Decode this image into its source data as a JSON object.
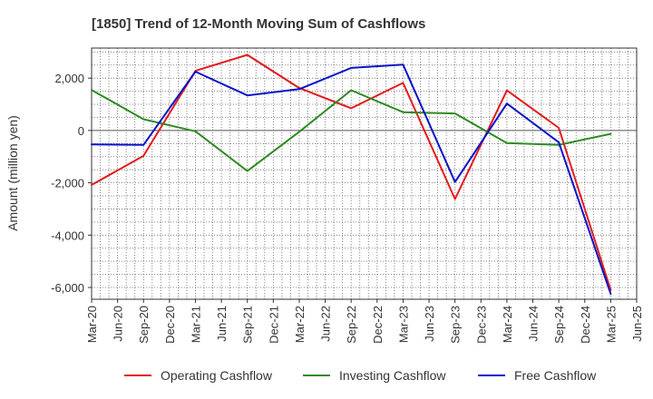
{
  "chart_data": {
    "type": "line",
    "title": "[1850]  Trend of 12-Month Moving Sum of Cashflows",
    "ylabel": "Amount (million yen)",
    "xlabel": "",
    "x_ticks": [
      "Mar-20",
      "Jun-20",
      "Sep-20",
      "Dec-20",
      "Mar-21",
      "Jun-21",
      "Sep-21",
      "Dec-21",
      "Mar-22",
      "Jun-22",
      "Sep-22",
      "Dec-22",
      "Mar-23",
      "Jun-23",
      "Sep-23",
      "Dec-23",
      "Mar-24",
      "Jun-24",
      "Sep-24",
      "Dec-24",
      "Mar-25",
      "Jun-25"
    ],
    "y_ticks": [
      2000,
      0,
      -2000,
      -4000,
      -6000
    ],
    "y_tick_labels": [
      "2,000",
      "0",
      "-2,000",
      "-4,000",
      "-6,000"
    ],
    "ylim": [
      -6450,
      3150
    ],
    "grid": true,
    "legend_position": "bottom",
    "series": [
      {
        "name": "Operating Cashflow",
        "color": "#e31a1c",
        "points": [
          [
            "Mar-20",
            -2080
          ],
          [
            "Sep-20",
            -970
          ],
          [
            "Mar-21",
            2280
          ],
          [
            "Sep-21",
            2890
          ],
          [
            "Mar-22",
            1620
          ],
          [
            "Sep-22",
            850
          ],
          [
            "Mar-23",
            1820
          ],
          [
            "Sep-23",
            -2620
          ],
          [
            "Mar-24",
            1530
          ],
          [
            "Sep-24",
            100
          ],
          [
            "Mar-25",
            -6100
          ]
        ]
      },
      {
        "name": "Investing Cashflow",
        "color": "#2e8b22",
        "points": [
          [
            "Mar-20",
            1550
          ],
          [
            "Sep-20",
            430
          ],
          [
            "Mar-21",
            -30
          ],
          [
            "Sep-21",
            -1550
          ],
          [
            "Mar-22",
            -50
          ],
          [
            "Sep-22",
            1540
          ],
          [
            "Mar-23",
            700
          ],
          [
            "Sep-23",
            650
          ],
          [
            "Mar-24",
            -480
          ],
          [
            "Sep-24",
            -550
          ],
          [
            "Mar-25",
            -130
          ]
        ]
      },
      {
        "name": "Free Cashflow",
        "color": "#0a14c8",
        "points": [
          [
            "Mar-20",
            -530
          ],
          [
            "Sep-20",
            -550
          ],
          [
            "Mar-21",
            2250
          ],
          [
            "Sep-21",
            1340
          ],
          [
            "Mar-22",
            1580
          ],
          [
            "Sep-22",
            2390
          ],
          [
            "Mar-23",
            2520
          ],
          [
            "Sep-23",
            -1970
          ],
          [
            "Mar-24",
            1030
          ],
          [
            "Sep-24",
            -450
          ],
          [
            "Mar-25",
            -6250
          ]
        ]
      }
    ]
  }
}
